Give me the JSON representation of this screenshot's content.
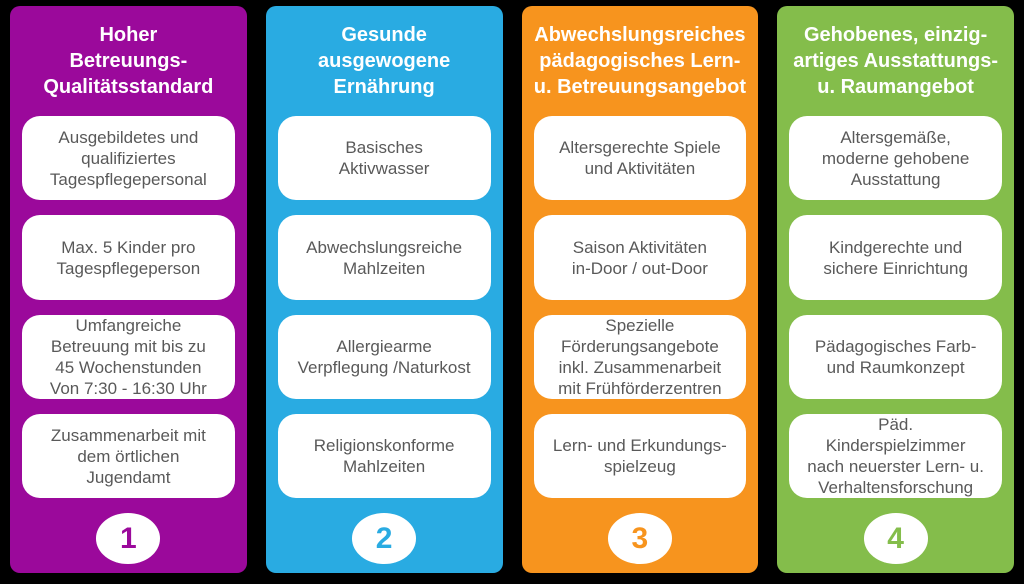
{
  "columns": [
    {
      "number": "1",
      "color": "#9B099B",
      "title": "Hoher\nBetreuungs-\nQualitätsstandard",
      "items": [
        "Ausgebildetes und\nqualifiziertes\nTagespflegepersonal",
        "Max. 5 Kinder pro\nTagespflegeperson",
        "Umfangreiche\nBetreuung mit bis zu\n45 Wochenstunden\nVon 7:30 - 16:30 Uhr",
        "Zusammenarbeit mit\ndem örtlichen\nJugendamt"
      ]
    },
    {
      "number": "2",
      "color": "#29ABE2",
      "title": "Gesunde\nausgewogene\nErnährung",
      "items": [
        "Basisches\nAktivwasser",
        "Abwechslungsreiche\nMahlzeiten",
        "Allergiearme\nVerpflegung /Naturkost",
        "Religionskonforme\nMahlzeiten"
      ]
    },
    {
      "number": "3",
      "color": "#F7941E",
      "title": "Abwechslungsreiches\npädagogisches Lern-\nu. Betreuungsangebot",
      "items": [
        "Altersgerechte Spiele\nund Aktivitäten",
        "Saison Aktivitäten\nin-Door / out-Door",
        "Spezielle\nFörderungsangebote\ninkl. Zusammenarbeit\nmit Frühförderzentren",
        "Lern- und Erkundungs-\nspielzeug"
      ]
    },
    {
      "number": "4",
      "color": "#84BD4B",
      "title": "Gehobenes, einzig-\nartiges Ausstattungs-\nu. Raumangebot",
      "items": [
        "Altersgemäße,\nmoderne gehobene\nAusstattung",
        "Kindgerechte und\nsichere Einrichtung",
        "Pädagogisches Farb-\nund Raumkonzept",
        "Päd.\nKinderspielzimmer\nnach neuerster Lern- u.\nVerhaltensforschung"
      ]
    }
  ]
}
